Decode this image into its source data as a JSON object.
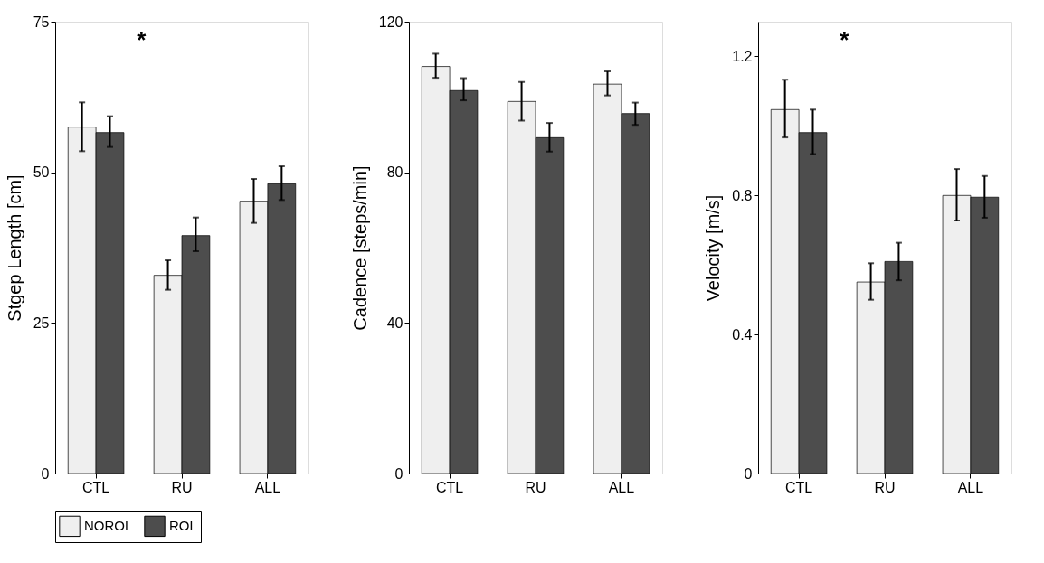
{
  "chart_data": [
    {
      "type": "bar",
      "ylabel": "Stgep Length [cm]",
      "categories": [
        "CTL",
        "RU",
        "ALL"
      ],
      "ylim": [
        0,
        75
      ],
      "yticks": [
        0,
        25,
        50,
        75
      ],
      "grid": false,
      "annotations": [
        "*"
      ],
      "legend": "bottom",
      "series": [
        {
          "name": "NOROL",
          "color": "#efefef",
          "values": [
            57.5,
            32.9,
            45.2
          ],
          "errors": [
            [
              53.5,
              61.6
            ],
            [
              30.5,
              35.4
            ],
            [
              41.6,
              48.9
            ]
          ]
        },
        {
          "name": "ROL",
          "color": "#4d4d4d",
          "values": [
            56.6,
            39.5,
            48.1
          ],
          "errors": [
            [
              54.2,
              59.3
            ],
            [
              36.9,
              42.5
            ],
            [
              45.4,
              51.0
            ]
          ]
        }
      ]
    },
    {
      "type": "bar",
      "ylabel": "Cadence [steps/min]",
      "categories": [
        "CTL",
        "RU",
        "ALL"
      ],
      "ylim": [
        0,
        120
      ],
      "yticks": [
        0,
        40,
        80,
        120
      ],
      "grid": false,
      "series": [
        {
          "color": "#efefef",
          "values": [
            108.1,
            98.8,
            103.4
          ],
          "errors": [
            [
              105.1,
              111.5
            ],
            [
              93.7,
              104.0
            ],
            [
              100.4,
              106.8
            ]
          ]
        },
        {
          "color": "#4d4d4d",
          "values": [
            101.7,
            89.2,
            95.6
          ],
          "errors": [
            [
              99.1,
              105.0
            ],
            [
              85.5,
              93.1
            ],
            [
              92.6,
              98.5
            ]
          ]
        }
      ]
    },
    {
      "type": "bar",
      "ylabel": "Velocity [m/s]",
      "categories": [
        "CTL",
        "RU",
        "ALL"
      ],
      "ylim": [
        0,
        1.3
      ],
      "yticks": [
        0,
        0.4,
        0.8,
        1.2
      ],
      "grid": false,
      "annotations": [
        "*"
      ],
      "series": [
        {
          "color": "#efefef",
          "values": [
            1.047,
            0.551,
            0.8
          ],
          "errors": [
            [
              0.967,
              1.133
            ],
            [
              0.5,
              0.605
            ],
            [
              0.728,
              0.876
            ]
          ]
        },
        {
          "color": "#4d4d4d",
          "values": [
            0.981,
            0.61,
            0.795
          ],
          "errors": [
            [
              0.919,
              1.047
            ],
            [
              0.556,
              0.664
            ],
            [
              0.736,
              0.856
            ]
          ]
        }
      ]
    }
  ]
}
